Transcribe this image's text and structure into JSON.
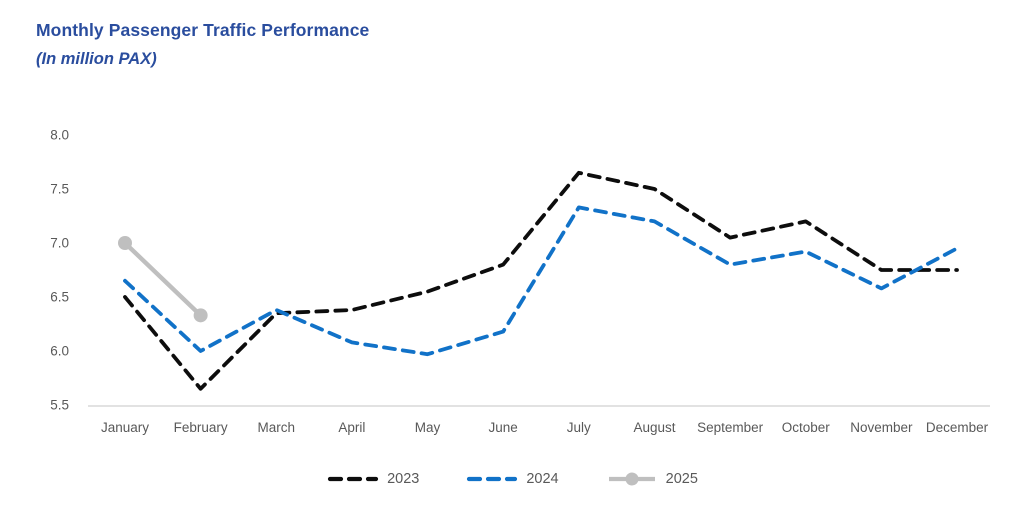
{
  "header": {
    "title": "Monthly Passenger Traffic Performance",
    "subtitle": "(In million PAX)"
  },
  "colors": {
    "title_text": "#2A4D9E",
    "axis_text": "#595959",
    "axis_line": "#D9D9D9",
    "series_2023": "#0D0D0D",
    "series_2024": "#1172C8",
    "series_2025": "#BFBFBF"
  },
  "chart_data": {
    "type": "line",
    "title": "Monthly Passenger Traffic Performance",
    "subtitle": "(In million PAX)",
    "xlabel": "",
    "ylabel": "",
    "ylim": [
      5.5,
      8.0
    ],
    "yticks": [
      "8.0",
      "7.5",
      "7.0",
      "6.5",
      "6.0",
      "5.5"
    ],
    "grid": false,
    "legend_position": "bottom",
    "categories": [
      "January",
      "February",
      "March",
      "April",
      "May",
      "June",
      "July",
      "August",
      "September",
      "October",
      "November",
      "December"
    ],
    "series": [
      {
        "name": "2023",
        "color": "#0D0D0D",
        "style": "dashed",
        "values": [
          6.5,
          5.65,
          6.35,
          6.38,
          6.55,
          6.8,
          7.65,
          7.5,
          7.05,
          7.2,
          6.75,
          6.75
        ]
      },
      {
        "name": "2024",
        "color": "#1172C8",
        "style": "dashed",
        "values": [
          6.65,
          6.0,
          6.38,
          6.08,
          5.97,
          6.18,
          7.33,
          7.2,
          6.8,
          6.92,
          6.58,
          6.95
        ]
      },
      {
        "name": "2025",
        "color": "#BFBFBF",
        "style": "solid-marker",
        "values": [
          7.0,
          6.33,
          null,
          null,
          null,
          null,
          null,
          null,
          null,
          null,
          null,
          null
        ]
      }
    ]
  }
}
